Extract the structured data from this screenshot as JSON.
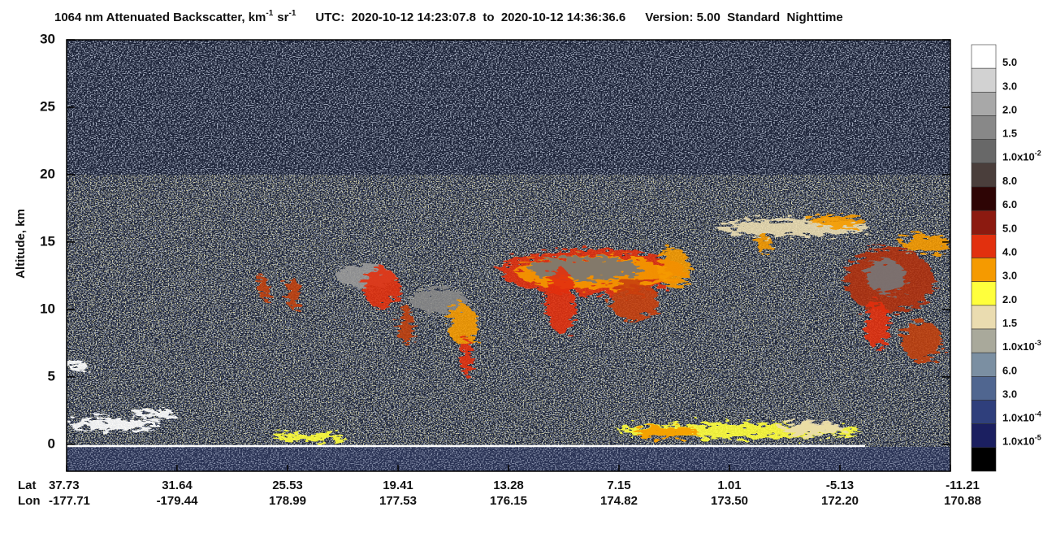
{
  "chart_data": {
    "type": "heatmap",
    "title": {
      "quantity": "1064 nm Attenuated Backscatter, km",
      "unit_exp_1": "-1",
      "unit_2": "sr",
      "unit_exp_2": "-1"
    },
    "utc": "UTC:  2020-10-12 14:23:07.8  to  2020-10-12 14:36:36.6",
    "version": "Version: 5.00  Standard  Nighttime",
    "ylabel": "Altitude, km",
    "ylim": [
      -2,
      30
    ],
    "yticks": [
      0,
      5,
      10,
      15,
      20,
      25,
      30
    ],
    "x_rows": {
      "lat": {
        "label": "Lat",
        "values": [
          "37.73",
          "31.64",
          "25.53",
          "19.41",
          "13.28",
          "7.15",
          "1.01",
          "-5.13",
          "-11.21"
        ]
      },
      "lon": {
        "label": "Lon",
        "values": [
          "-177.71",
          "-179.44",
          "178.99",
          "177.53",
          "176.15",
          "174.82",
          "173.50",
          "172.20",
          "170.88"
        ]
      }
    },
    "colorbar": {
      "colors": [
        "#ffffff",
        "#d2d2d2",
        "#a8a8a8",
        "#888888",
        "#686868",
        "#4a3e3b",
        "#2e0505",
        "#8c1a10",
        "#e2300e",
        "#f59a00",
        "#ffff3c",
        "#eadcb0",
        "#a9a99b",
        "#7b8fa2",
        "#506690",
        "#2f3f7c",
        "#1b1f60",
        "#000000"
      ],
      "labels": [
        "5.0",
        "3.0",
        "2.0",
        "1.5",
        {
          "text": "1.0x10",
          "exp": "-2"
        },
        "8.0",
        "6.0",
        "5.0",
        "4.0",
        "3.0",
        "2.0",
        "1.5",
        {
          "text": "1.0x10",
          "exp": "-3"
        },
        "6.0",
        "3.0",
        {
          "text": "1.0x10",
          "exp": "-4"
        },
        {
          "text": "1.0x10",
          "exp": "-5"
        }
      ]
    }
  }
}
